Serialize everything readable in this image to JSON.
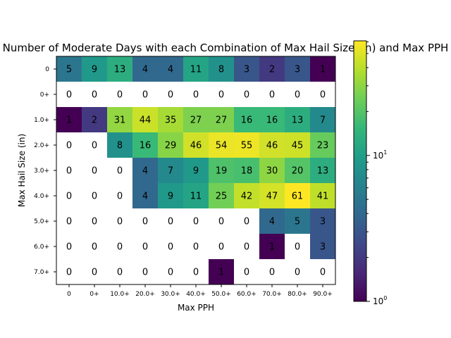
{
  "chart_data": {
    "type": "heatmap",
    "title": "Number of Moderate Days with each Combination of Max Hail Size (in) and Max PPH",
    "xlabel": "Max PPH",
    "ylabel": "Max Hail Size (in)",
    "x_categories": [
      "0",
      "0+",
      "10.0+",
      "20.0+",
      "30.0+",
      "40.0+",
      "50.0+",
      "60.0+",
      "70.0+",
      "80.0+",
      "90.0+"
    ],
    "y_categories": [
      "0",
      "0+",
      "1.0+",
      "2.0+",
      "3.0+",
      "4.0+",
      "5.0+",
      "6.0+",
      "7.0+"
    ],
    "values": [
      [
        5,
        9,
        13,
        4,
        4,
        11,
        8,
        3,
        2,
        3,
        1
      ],
      [
        0,
        0,
        0,
        0,
        0,
        0,
        0,
        0,
        0,
        0,
        0
      ],
      [
        1,
        2,
        31,
        44,
        35,
        27,
        27,
        16,
        16,
        13,
        7
      ],
      [
        0,
        0,
        8,
        16,
        29,
        46,
        54,
        55,
        46,
        45,
        23
      ],
      [
        0,
        0,
        0,
        4,
        7,
        9,
        19,
        18,
        30,
        20,
        13
      ],
      [
        0,
        0,
        0,
        4,
        9,
        11,
        25,
        42,
        47,
        61,
        41
      ],
      [
        0,
        0,
        0,
        0,
        0,
        0,
        0,
        0,
        4,
        5,
        3
      ],
      [
        0,
        0,
        0,
        0,
        0,
        0,
        0,
        0,
        1,
        0,
        3
      ],
      [
        0,
        0,
        0,
        0,
        0,
        0,
        1,
        0,
        0,
        0,
        0
      ]
    ],
    "color_scale": "log",
    "colormap": "viridis",
    "zero_color": "#ffffff",
    "vmin": 1,
    "vmax": 61,
    "colorbar_ticks": [
      {
        "value": 1,
        "label": "10",
        "exp": "0"
      },
      {
        "value": 10,
        "label": "10",
        "exp": "1"
      }
    ]
  }
}
